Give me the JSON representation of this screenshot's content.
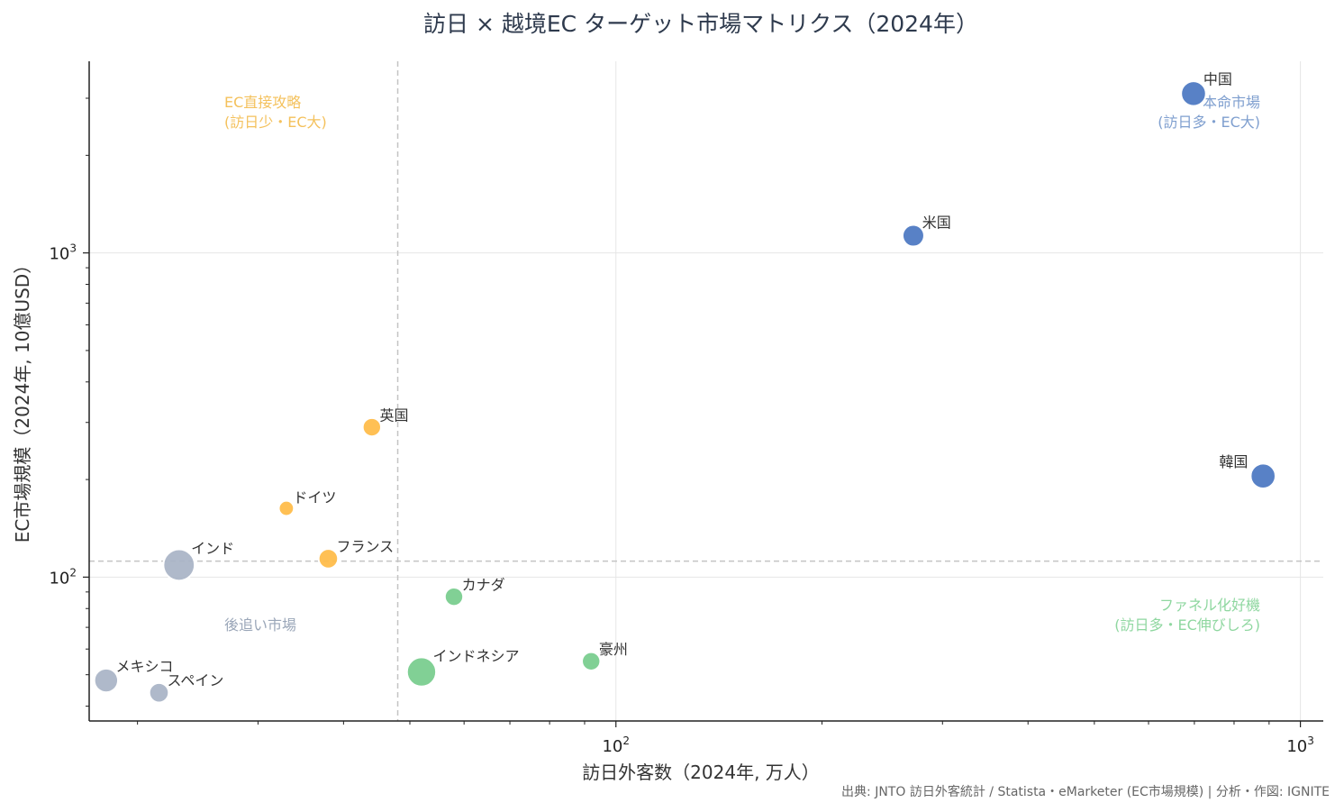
{
  "chart_data": {
    "type": "scatter",
    "title": "訪日 × 越境EC ターゲット市場マトリクス（2024年）",
    "xlabel": "訪日外客数（2024年, 万人）",
    "ylabel": "EC市場規模（2024年, 10億USD）",
    "x_scale": "log",
    "y_scale": "log",
    "xlim": [
      17,
      1080
    ],
    "ylim": [
      36,
      3900
    ],
    "x_ticks": [
      {
        "value": 100,
        "base": "10",
        "exp": "2"
      },
      {
        "value": 1000,
        "base": "10",
        "exp": "3"
      }
    ],
    "y_ticks": [
      {
        "value": 100,
        "base": "10",
        "exp": "2"
      },
      {
        "value": 1000,
        "base": "10",
        "exp": "3"
      }
    ],
    "threshold_x": 48,
    "threshold_y": 112,
    "grid": true,
    "points": [
      {
        "label": "中国",
        "x": 698,
        "y": 3100,
        "size": 1.15,
        "group": "本命市場"
      },
      {
        "label": "米国",
        "x": 272,
        "y": 1130,
        "size": 1.0,
        "group": "本命市場"
      },
      {
        "label": "韓国",
        "x": 882,
        "y": 205,
        "size": 1.15,
        "group": "本命市場"
      },
      {
        "label": "英国",
        "x": 44,
        "y": 290,
        "size": 0.85,
        "group": "EC直接攻略"
      },
      {
        "label": "ドイツ",
        "x": 33,
        "y": 163,
        "size": 0.7,
        "group": "EC直接攻略"
      },
      {
        "label": "フランス",
        "x": 38,
        "y": 114,
        "size": 0.9,
        "group": "EC直接攻略"
      },
      {
        "label": "カナダ",
        "x": 58,
        "y": 87,
        "size": 0.85,
        "group": "ファネル化好機"
      },
      {
        "label": "インドネシア",
        "x": 52,
        "y": 51,
        "size": 1.35,
        "group": "ファネル化好機"
      },
      {
        "label": "豪州",
        "x": 92,
        "y": 55,
        "size": 0.85,
        "group": "ファネル化好機"
      },
      {
        "label": "インド",
        "x": 23,
        "y": 109,
        "size": 1.45,
        "group": "後追い市場"
      },
      {
        "label": "メキシコ",
        "x": 18,
        "y": 48,
        "size": 1.1,
        "group": "後追い市場"
      },
      {
        "label": "スペイン",
        "x": 21.5,
        "y": 44,
        "size": 0.9,
        "group": "後追い市場"
      }
    ],
    "quadrants": [
      {
        "key": "EC直接攻略",
        "line1": "EC直接攻略",
        "line2": "(訪日少・EC大)",
        "color": "#f4c15c"
      },
      {
        "key": "本命市場",
        "line1": "本命市場",
        "line2": "(訪日多・EC大)",
        "color": "#7f9fcf"
      },
      {
        "key": "ファネル化好機",
        "line1": "ファネル化好機",
        "line2": "(訪日多・EC伸びしろ)",
        "color": "#8fd7a0"
      },
      {
        "key": "後追い市場",
        "line1": "後追い市場",
        "line2": "",
        "color": "#9aa6b8"
      }
    ],
    "colors": {
      "本命市場": "#4a76c1",
      "EC直接攻略": "#ffbb45",
      "ファネル化好機": "#76cc8c",
      "後追い市場": "#a8b3c5"
    }
  },
  "source": "出典: JNTO 訪日外客統計 / Statista・eMarketer (EC市場規模)  |  分析・作図: IGNITE"
}
